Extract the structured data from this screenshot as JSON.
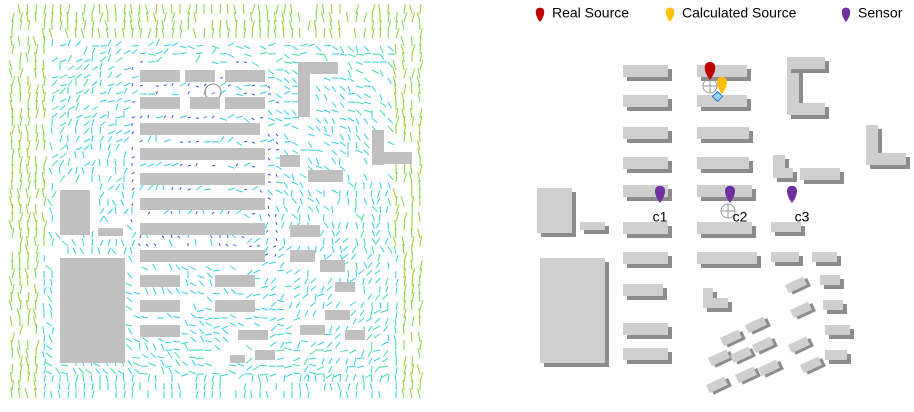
{
  "legend": [
    {
      "label": "Real Source",
      "color": "#c00000"
    },
    {
      "label": "Calculated Source",
      "color": "#ffc000"
    },
    {
      "label": "Sensor",
      "color": "#7030a0"
    }
  ],
  "sensors": [
    {
      "label": "c1"
    },
    {
      "label": "c2"
    },
    {
      "label": "c3"
    }
  ]
}
